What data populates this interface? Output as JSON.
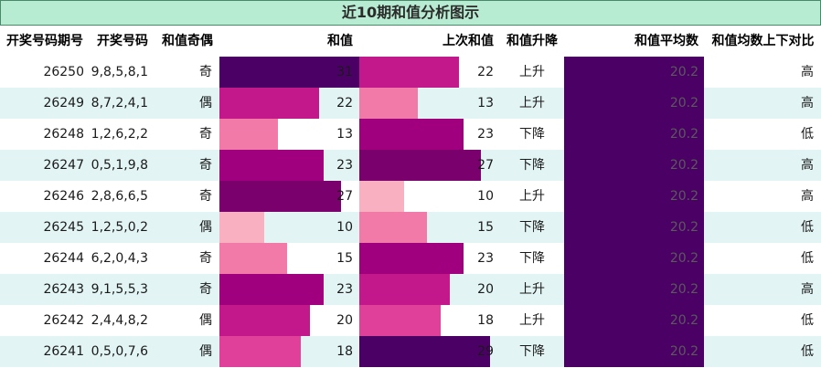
{
  "title": "近10期和值分析图示",
  "headers": {
    "issue": "开奖号码期号",
    "numbers": "开奖号码",
    "parity": "和值奇偶",
    "sum": "和值",
    "prev_sum": "上次和值",
    "trend": "和值升降",
    "avg": "和值平均数",
    "avg_compare": "和值均数上下对比"
  },
  "sum_max": 31,
  "rows": [
    {
      "issue": "26250",
      "numbers": "9,8,5,8,1",
      "parity": "奇",
      "sum": 31,
      "prev_sum": 22,
      "trend": "上升",
      "avg": "20.2",
      "compare": "高"
    },
    {
      "issue": "26249",
      "numbers": "8,7,2,4,1",
      "parity": "偶",
      "sum": 22,
      "prev_sum": 13,
      "trend": "上升",
      "avg": "20.2",
      "compare": "高"
    },
    {
      "issue": "26248",
      "numbers": "1,2,6,2,2",
      "parity": "奇",
      "sum": 13,
      "prev_sum": 23,
      "trend": "下降",
      "avg": "20.2",
      "compare": "低"
    },
    {
      "issue": "26247",
      "numbers": "0,5,1,9,8",
      "parity": "奇",
      "sum": 23,
      "prev_sum": 27,
      "trend": "下降",
      "avg": "20.2",
      "compare": "高"
    },
    {
      "issue": "26246",
      "numbers": "2,8,6,6,5",
      "parity": "奇",
      "sum": 27,
      "prev_sum": 10,
      "trend": "上升",
      "avg": "20.2",
      "compare": "高"
    },
    {
      "issue": "26245",
      "numbers": "1,2,5,0,2",
      "parity": "偶",
      "sum": 10,
      "prev_sum": 15,
      "trend": "下降",
      "avg": "20.2",
      "compare": "低"
    },
    {
      "issue": "26244",
      "numbers": "6,2,0,4,3",
      "parity": "奇",
      "sum": 15,
      "prev_sum": 23,
      "trend": "下降",
      "avg": "20.2",
      "compare": "低"
    },
    {
      "issue": "26243",
      "numbers": "9,1,5,5,3",
      "parity": "奇",
      "sum": 23,
      "prev_sum": 20,
      "trend": "上升",
      "avg": "20.2",
      "compare": "高"
    },
    {
      "issue": "26242",
      "numbers": "2,4,4,8,2",
      "parity": "偶",
      "sum": 20,
      "prev_sum": 18,
      "trend": "上升",
      "avg": "20.2",
      "compare": "低"
    },
    {
      "issue": "26241",
      "numbers": "0,5,0,7,6",
      "parity": "偶",
      "sum": 18,
      "prev_sum": 29,
      "trend": "下降",
      "avg": "20.2",
      "compare": "低"
    }
  ],
  "colors": {
    "title_bg": "#b8ecd2",
    "row_alt_bg": "#e2f4f3",
    "avg_bar": "#4b0066",
    "scale": [
      "#f9b0c0",
      "#f27aa8",
      "#e0409a",
      "#c2188c",
      "#a0007e",
      "#7a006e",
      "#4b0066"
    ]
  }
}
